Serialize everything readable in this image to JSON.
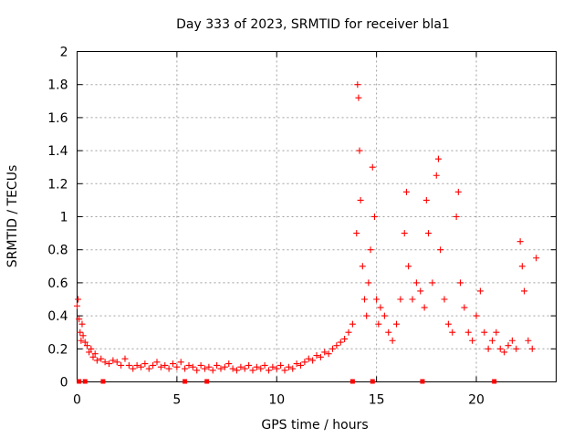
{
  "chart_data": {
    "type": "scatter",
    "title": "Day 333 of 2023, SRMTID for receiver bla1",
    "xlabel": "GPS time / hours",
    "ylabel": "SRMTID / TECUs",
    "xlim": [
      0,
      24.0
    ],
    "ylim": [
      0,
      2
    ],
    "x_ticks": [
      0,
      5,
      10,
      15,
      20
    ],
    "x_tick_labels": [
      "0",
      "5",
      "10",
      "15",
      "20"
    ],
    "y_ticks": [
      0,
      0.2,
      0.4,
      0.6,
      0.8,
      1,
      1.2,
      1.4,
      1.6,
      1.8,
      2
    ],
    "y_tick_labels": [
      "0",
      "0.2",
      "0.4",
      "0.6",
      "0.8",
      "1",
      "1.2",
      "1.4",
      "1.6",
      "1.8",
      "2"
    ],
    "grid": true,
    "marker": "+",
    "color": "#ff0000",
    "series": [
      {
        "name": "SRMTID",
        "points": [
          [
            0.0,
            0.46
          ],
          [
            0.05,
            0.5
          ],
          [
            0.1,
            0.38
          ],
          [
            0.15,
            0.3
          ],
          [
            0.2,
            0.25
          ],
          [
            0.25,
            0.35
          ],
          [
            0.3,
            0.28
          ],
          [
            0.4,
            0.24
          ],
          [
            0.5,
            0.22
          ],
          [
            0.6,
            0.18
          ],
          [
            0.7,
            0.2
          ],
          [
            0.8,
            0.15
          ],
          [
            0.9,
            0.17
          ],
          [
            1.0,
            0.13
          ],
          [
            1.2,
            0.14
          ],
          [
            1.4,
            0.12
          ],
          [
            1.6,
            0.11
          ],
          [
            1.8,
            0.13
          ],
          [
            2.0,
            0.12
          ],
          [
            2.2,
            0.1
          ],
          [
            2.4,
            0.14
          ],
          [
            2.6,
            0.1
          ],
          [
            2.8,
            0.08
          ],
          [
            3.0,
            0.1
          ],
          [
            3.2,
            0.09
          ],
          [
            3.4,
            0.11
          ],
          [
            3.6,
            0.08
          ],
          [
            3.8,
            0.1
          ],
          [
            4.0,
            0.12
          ],
          [
            4.2,
            0.09
          ],
          [
            4.4,
            0.1
          ],
          [
            4.6,
            0.08
          ],
          [
            4.8,
            0.11
          ],
          [
            5.0,
            0.09
          ],
          [
            5.2,
            0.12
          ],
          [
            5.4,
            0.08
          ],
          [
            5.6,
            0.1
          ],
          [
            5.8,
            0.09
          ],
          [
            6.0,
            0.07
          ],
          [
            6.2,
            0.1
          ],
          [
            6.4,
            0.08
          ],
          [
            6.6,
            0.09
          ],
          [
            6.8,
            0.07
          ],
          [
            7.0,
            0.1
          ],
          [
            7.2,
            0.08
          ],
          [
            7.4,
            0.09
          ],
          [
            7.6,
            0.11
          ],
          [
            7.8,
            0.08
          ],
          [
            8.0,
            0.07
          ],
          [
            8.2,
            0.09
          ],
          [
            8.4,
            0.08
          ],
          [
            8.6,
            0.1
          ],
          [
            8.8,
            0.07
          ],
          [
            9.0,
            0.09
          ],
          [
            9.2,
            0.08
          ],
          [
            9.4,
            0.1
          ],
          [
            9.6,
            0.07
          ],
          [
            9.8,
            0.09
          ],
          [
            10.0,
            0.08
          ],
          [
            10.2,
            0.1
          ],
          [
            10.4,
            0.07
          ],
          [
            10.6,
            0.09
          ],
          [
            10.8,
            0.08
          ],
          [
            11.0,
            0.11
          ],
          [
            11.2,
            0.1
          ],
          [
            11.4,
            0.12
          ],
          [
            11.6,
            0.14
          ],
          [
            11.8,
            0.13
          ],
          [
            12.0,
            0.16
          ],
          [
            12.2,
            0.15
          ],
          [
            12.4,
            0.18
          ],
          [
            12.6,
            0.17
          ],
          [
            12.8,
            0.2
          ],
          [
            13.0,
            0.22
          ],
          [
            13.2,
            0.24
          ],
          [
            13.4,
            0.26
          ],
          [
            13.6,
            0.3
          ],
          [
            13.8,
            0.35
          ],
          [
            14.0,
            0.9
          ],
          [
            14.05,
            1.8
          ],
          [
            14.1,
            1.72
          ],
          [
            14.15,
            1.4
          ],
          [
            14.2,
            1.1
          ],
          [
            14.3,
            0.7
          ],
          [
            14.4,
            0.5
          ],
          [
            14.5,
            0.4
          ],
          [
            14.6,
            0.6
          ],
          [
            14.7,
            0.8
          ],
          [
            14.8,
            1.3
          ],
          [
            14.9,
            1.0
          ],
          [
            15.0,
            0.5
          ],
          [
            15.1,
            0.35
          ],
          [
            15.2,
            0.45
          ],
          [
            15.4,
            0.4
          ],
          [
            15.6,
            0.3
          ],
          [
            15.8,
            0.25
          ],
          [
            16.0,
            0.35
          ],
          [
            16.2,
            0.5
          ],
          [
            16.4,
            0.9
          ],
          [
            16.5,
            1.15
          ],
          [
            16.6,
            0.7
          ],
          [
            16.8,
            0.5
          ],
          [
            17.0,
            0.6
          ],
          [
            17.2,
            0.55
          ],
          [
            17.4,
            0.45
          ],
          [
            17.5,
            1.1
          ],
          [
            17.6,
            0.9
          ],
          [
            17.8,
            0.6
          ],
          [
            18.0,
            1.25
          ],
          [
            18.1,
            1.35
          ],
          [
            18.2,
            0.8
          ],
          [
            18.4,
            0.5
          ],
          [
            18.6,
            0.35
          ],
          [
            18.8,
            0.3
          ],
          [
            19.0,
            1.0
          ],
          [
            19.1,
            1.15
          ],
          [
            19.2,
            0.6
          ],
          [
            19.4,
            0.45
          ],
          [
            19.6,
            0.3
          ],
          [
            19.8,
            0.25
          ],
          [
            20.0,
            0.4
          ],
          [
            20.2,
            0.55
          ],
          [
            20.4,
            0.3
          ],
          [
            20.6,
            0.2
          ],
          [
            20.8,
            0.25
          ],
          [
            21.0,
            0.3
          ],
          [
            21.2,
            0.2
          ],
          [
            21.4,
            0.18
          ],
          [
            21.6,
            0.22
          ],
          [
            21.8,
            0.25
          ],
          [
            22.0,
            0.2
          ],
          [
            22.2,
            0.85
          ],
          [
            22.3,
            0.7
          ],
          [
            22.4,
            0.55
          ],
          [
            22.6,
            0.25
          ],
          [
            22.8,
            0.2
          ],
          [
            23.0,
            0.75
          ]
        ]
      }
    ],
    "zero_level_markers_x": [
      0.1,
      0.4,
      1.3,
      5.4,
      6.5,
      13.8,
      14.8,
      17.3,
      20.9
    ]
  }
}
